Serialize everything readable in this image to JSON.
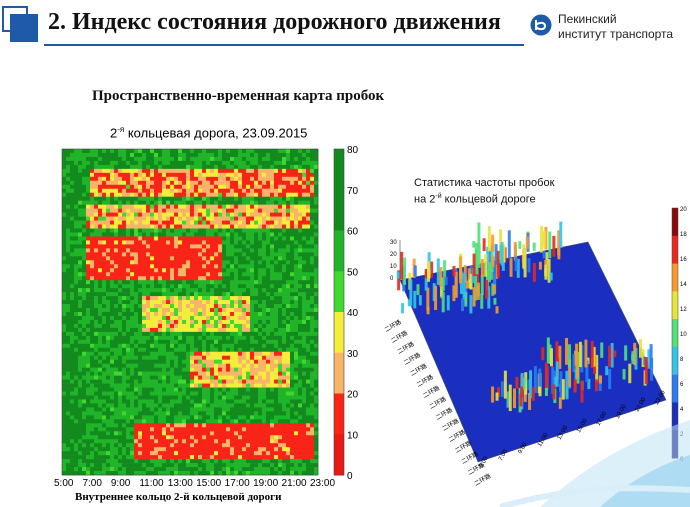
{
  "slide": {
    "title": "2. Индекс состояния дорожного движения",
    "institute_line1": "Пекинский",
    "institute_line2": "институт транспорта",
    "logo_icon": "beijing-transport-institute-logo",
    "accent_color": "#1f5aa8"
  },
  "section": {
    "subtitle": "Пространственно-временная карта пробок"
  },
  "heatmap": {
    "title_prefix": "2",
    "title_sup": "-я",
    "title_rest": " кольцевая дорога, 23.09.2015",
    "caption": "Внутреннее кольцо 2-й кольцевой дороги",
    "colorbar_ticks": [
      "80",
      "70",
      "60",
      "50",
      "40",
      "30",
      "20",
      "10",
      "0"
    ],
    "colorbar_colors": [
      "#138a1e",
      "#138a1e",
      "#20b428",
      "#40d82e",
      "#f2ee3a",
      "#f8b468",
      "#f82418",
      "#e81a14",
      "#8a8a8a"
    ],
    "x_ticks": [
      "5:00",
      "7:00",
      "9:00",
      "11:00",
      "13:00",
      "15:00",
      "17:00",
      "19:00",
      "21:00",
      "23:00"
    ]
  },
  "surface": {
    "title_line1": "Статистика частоты пробок",
    "title_line2_prefix": "на 2",
    "title_line2_sup": "-й",
    "title_line2_rest": " кольцевой дороге",
    "colorbar_ticks": [
      "20",
      "18",
      "16",
      "14",
      "12",
      "10",
      "8",
      "6",
      "4",
      "2",
      "0"
    ],
    "z_ticks": [
      "30",
      "20",
      "10",
      "0"
    ],
    "time_ticks": [
      "5:00",
      "7:00",
      "9:00",
      "11:00",
      "13:00",
      "15:00",
      "17:00",
      "19:00",
      "21:00",
      "23:00"
    ],
    "road_labels": [
      "二环路",
      "二环路",
      "二环路",
      "二环路",
      "二环路",
      "二环路",
      "二环路",
      "二环路",
      "二环路",
      "二环路",
      "二环路",
      "二环路",
      "二环路",
      "二环路",
      "二环路"
    ]
  }
}
